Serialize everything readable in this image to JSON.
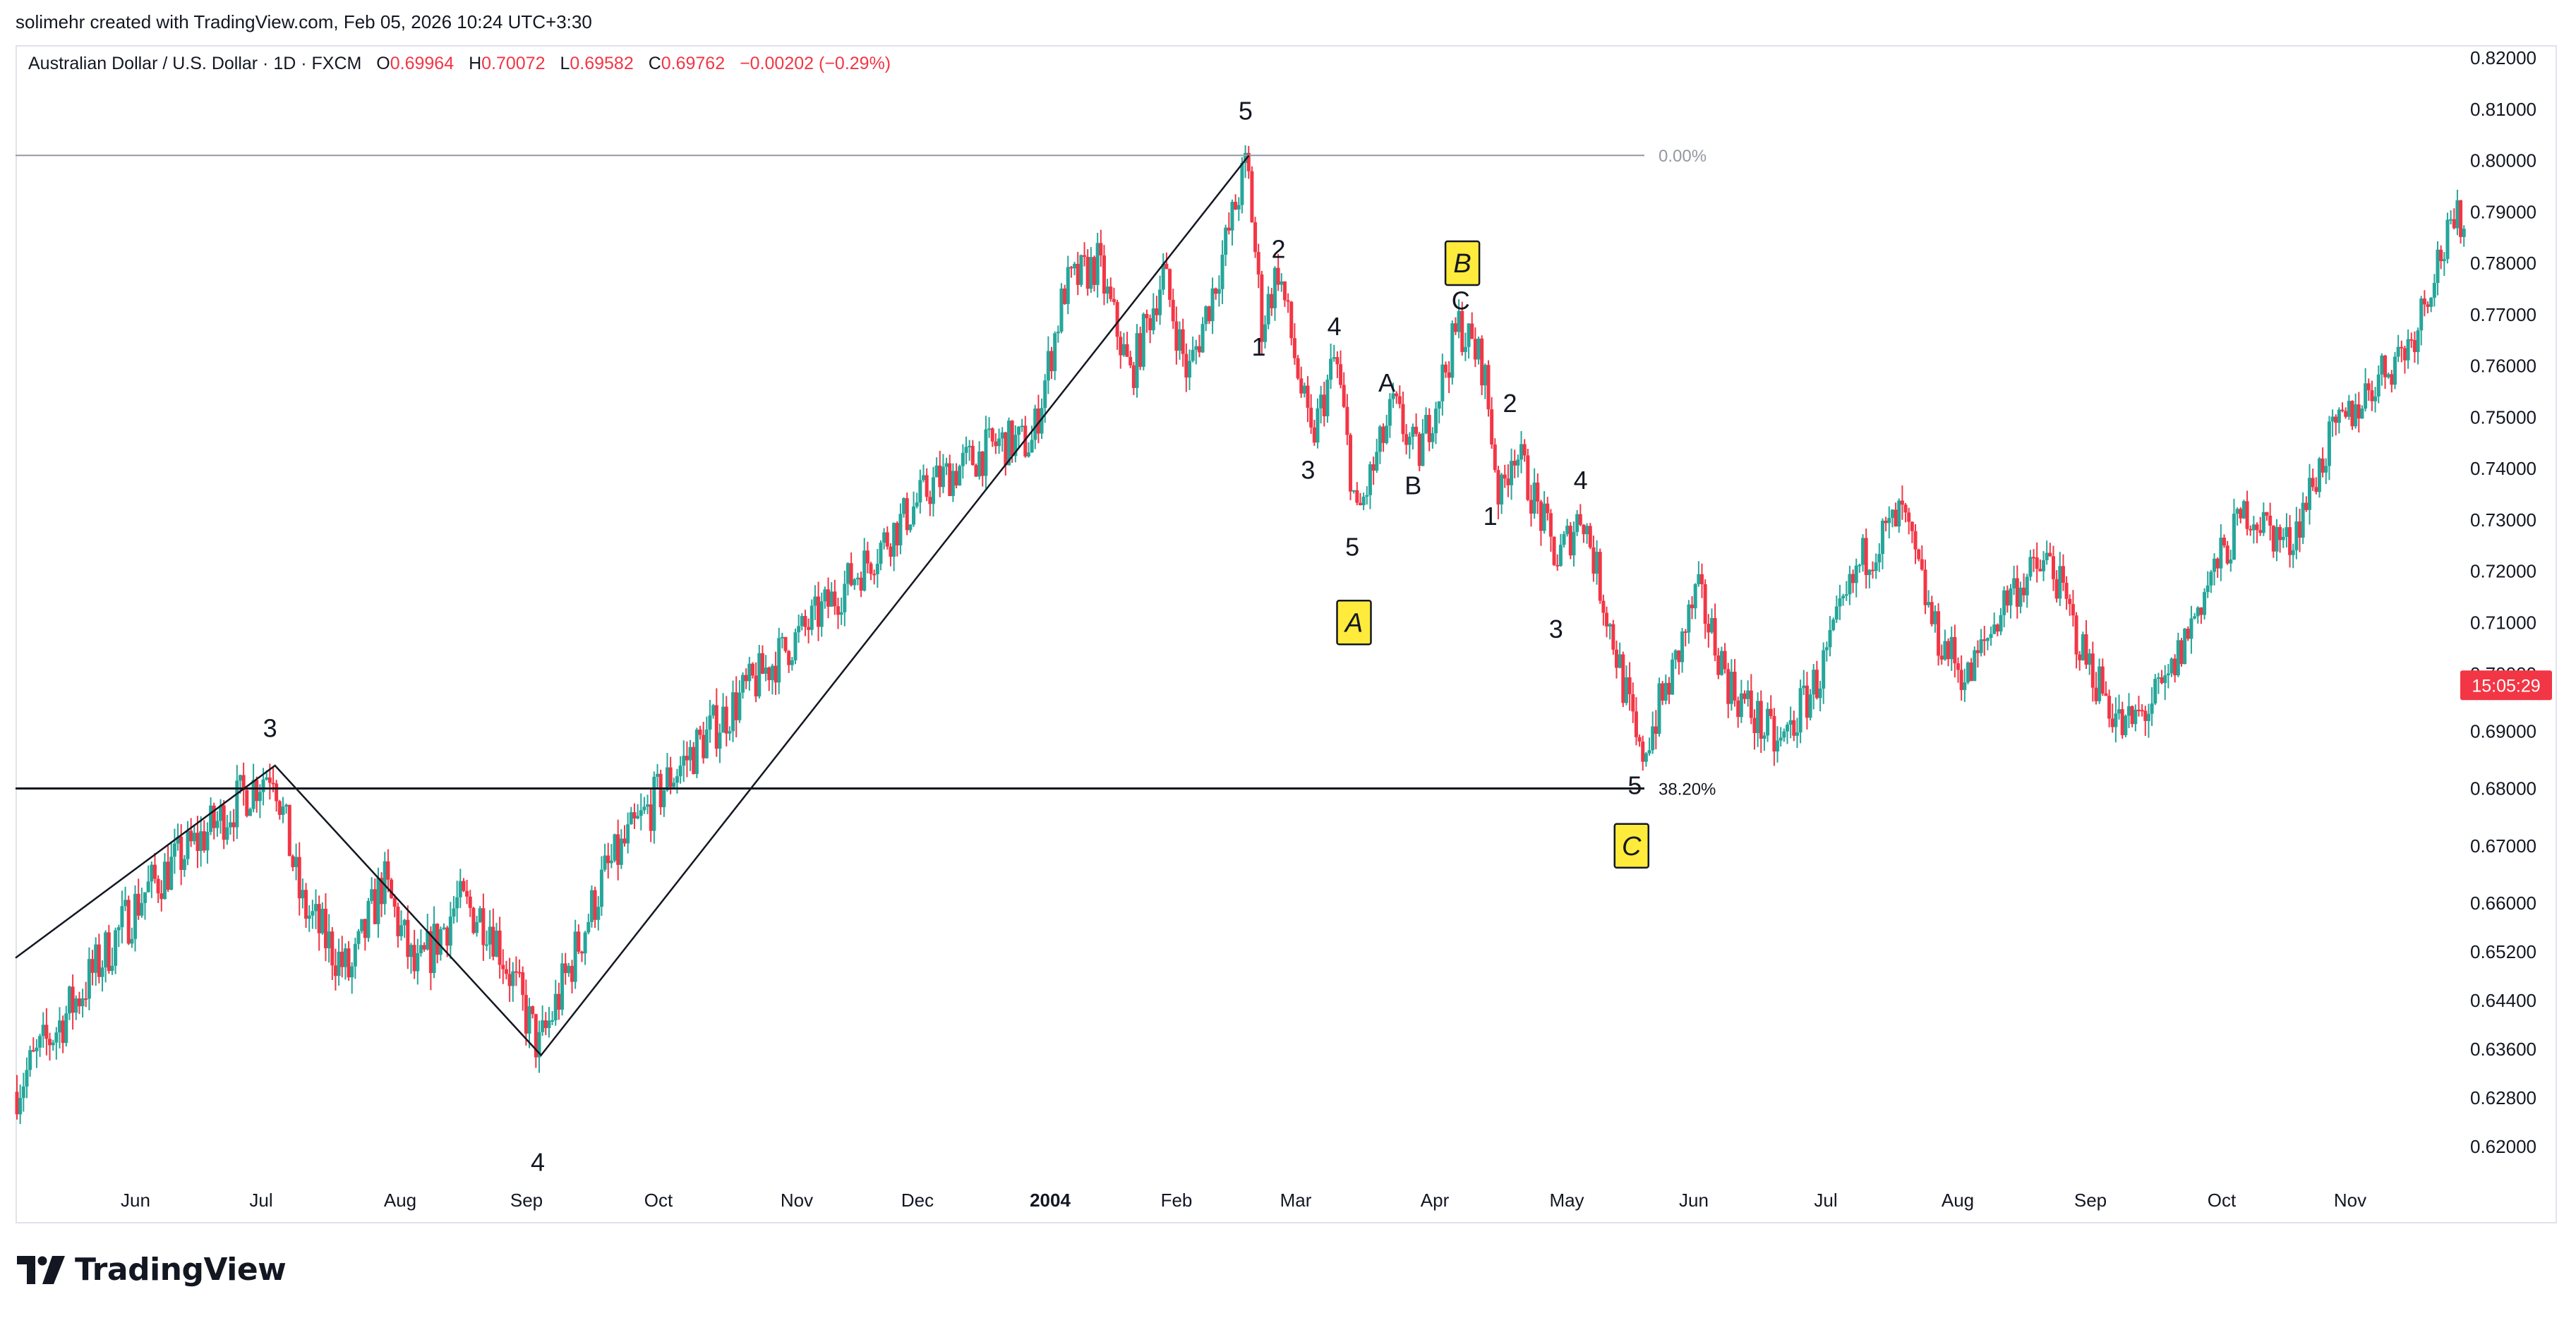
{
  "attribution": "solimehr created with TradingView.com, Feb 05, 2026 10:24 UTC+3:30",
  "symbol": {
    "name": "Australian Dollar / U.S. Dollar · 1D · FXCM",
    "open_label": "O",
    "open": "0.69964",
    "high_label": "H",
    "high": "0.70072",
    "low_label": "L",
    "low": "0.69582",
    "close_label": "C",
    "close": "0.69762",
    "change": "−0.00202 (−0.29%)"
  },
  "countdown": "15:05:29",
  "logo_text": "TradingView",
  "colors": {
    "up": "#26a69a",
    "down": "#f23645",
    "badge": "#ffeb3b",
    "text": "#131722",
    "axis_text": "#131722",
    "fib_line": "#9598a1"
  },
  "chart_data": {
    "type": "candlestick",
    "y_axis_ticks": [
      "0.82000",
      "0.81000",
      "0.80000",
      "0.79000",
      "0.78000",
      "0.77000",
      "0.76000",
      "0.75000",
      "0.74000",
      "0.73000",
      "0.72000",
      "0.71000",
      "0.70000",
      "0.69000",
      "0.68000",
      "0.67000",
      "0.66000",
      "0.65200",
      "0.64400",
      "0.63600",
      "0.62800",
      "0.62000"
    ],
    "x_axis_labels": [
      "Jun",
      "Jul",
      "Aug",
      "Sep",
      "Oct",
      "Nov",
      "Dec",
      "2004",
      "Feb",
      "Mar",
      "Apr",
      "May",
      "Jun",
      "Jul",
      "Aug",
      "Sep",
      "Oct",
      "Nov"
    ],
    "bold_x_label": "2004",
    "fib_levels": [
      {
        "label": "0.00%",
        "price": 0.801
      },
      {
        "label": "38.20%",
        "price": 0.68
      }
    ],
    "wave_labels": [
      {
        "text": "3",
        "date_index": 155,
        "price": 0.689
      },
      {
        "text": "4",
        "date_index": 318,
        "price": 0.616
      },
      {
        "text": "5",
        "date_index": 749,
        "price": 0.808
      },
      {
        "text": "1",
        "date_index": 757,
        "price": 0.762
      },
      {
        "text": "2",
        "date_index": 769,
        "price": 0.781
      },
      {
        "text": "3",
        "date_index": 787,
        "price": 0.738
      },
      {
        "text": "4",
        "date_index": 803,
        "price": 0.766
      },
      {
        "text": "5",
        "date_index": 814,
        "price": 0.723
      },
      {
        "text": "A",
        "date_index": 835,
        "price": 0.755
      },
      {
        "text": "B",
        "date_index": 851,
        "price": 0.735
      },
      {
        "text": "C",
        "date_index": 880,
        "price": 0.771
      },
      {
        "text": "2",
        "date_index": 910,
        "price": 0.751
      },
      {
        "text": "1",
        "date_index": 898,
        "price": 0.729
      },
      {
        "text": "4",
        "date_index": 953,
        "price": 0.736
      },
      {
        "text": "3",
        "date_index": 938,
        "price": 0.707
      },
      {
        "text": "5",
        "date_index": 986,
        "price": 0.679
      }
    ],
    "wave_badges": [
      {
        "text": "A",
        "date_index": 815,
        "price": 0.71
      },
      {
        "text": "B",
        "date_index": 881,
        "price": 0.78
      },
      {
        "text": "C",
        "date_index": 984,
        "price": 0.67
      }
    ],
    "trend_path": [
      {
        "date_index": 0,
        "price": 0.651
      },
      {
        "date_index": 158,
        "price": 0.684
      },
      {
        "date_index": 320,
        "price": 0.635
      },
      {
        "date_index": 751,
        "price": 0.801
      }
    ],
    "price_path": [
      {
        "date_index": 0,
        "price": 0.629
      },
      {
        "date_index": 40,
        "price": 0.645
      },
      {
        "date_index": 80,
        "price": 0.662
      },
      {
        "date_index": 120,
        "price": 0.673
      },
      {
        "date_index": 158,
        "price": 0.684
      },
      {
        "date_index": 175,
        "price": 0.66
      },
      {
        "date_index": 205,
        "price": 0.648
      },
      {
        "date_index": 225,
        "price": 0.664
      },
      {
        "date_index": 245,
        "price": 0.648
      },
      {
        "date_index": 270,
        "price": 0.66
      },
      {
        "date_index": 290,
        "price": 0.657
      },
      {
        "date_index": 320,
        "price": 0.636
      },
      {
        "date_index": 360,
        "price": 0.665
      },
      {
        "date_index": 400,
        "price": 0.682
      },
      {
        "date_index": 440,
        "price": 0.695
      },
      {
        "date_index": 480,
        "price": 0.708
      },
      {
        "date_index": 520,
        "price": 0.722
      },
      {
        "date_index": 560,
        "price": 0.737
      },
      {
        "date_index": 600,
        "price": 0.745
      },
      {
        "date_index": 620,
        "price": 0.745
      },
      {
        "date_index": 640,
        "price": 0.775
      },
      {
        "date_index": 660,
        "price": 0.78
      },
      {
        "date_index": 680,
        "price": 0.758
      },
      {
        "date_index": 700,
        "price": 0.778
      },
      {
        "date_index": 715,
        "price": 0.758
      },
      {
        "date_index": 735,
        "price": 0.78
      },
      {
        "date_index": 751,
        "price": 0.8
      },
      {
        "date_index": 760,
        "price": 0.768
      },
      {
        "date_index": 770,
        "price": 0.779
      },
      {
        "date_index": 790,
        "price": 0.745
      },
      {
        "date_index": 805,
        "price": 0.762
      },
      {
        "date_index": 818,
        "price": 0.73
      },
      {
        "date_index": 840,
        "price": 0.752
      },
      {
        "date_index": 855,
        "price": 0.742
      },
      {
        "date_index": 880,
        "price": 0.768
      },
      {
        "date_index": 895,
        "price": 0.76
      },
      {
        "date_index": 905,
        "price": 0.733
      },
      {
        "date_index": 913,
        "price": 0.745
      },
      {
        "date_index": 940,
        "price": 0.722
      },
      {
        "date_index": 955,
        "price": 0.732
      },
      {
        "date_index": 990,
        "price": 0.685
      },
      {
        "date_index": 1010,
        "price": 0.7
      },
      {
        "date_index": 1025,
        "price": 0.716
      },
      {
        "date_index": 1045,
        "price": 0.698
      },
      {
        "date_index": 1075,
        "price": 0.687
      },
      {
        "date_index": 1100,
        "price": 0.7
      },
      {
        "date_index": 1125,
        "price": 0.722
      },
      {
        "date_index": 1150,
        "price": 0.731
      },
      {
        "date_index": 1170,
        "price": 0.708
      },
      {
        "date_index": 1190,
        "price": 0.699
      },
      {
        "date_index": 1215,
        "price": 0.716
      },
      {
        "date_index": 1240,
        "price": 0.722
      },
      {
        "date_index": 1260,
        "price": 0.704
      },
      {
        "date_index": 1285,
        "price": 0.69
      },
      {
        "date_index": 1310,
        "price": 0.697
      },
      {
        "date_index": 1335,
        "price": 0.717
      },
      {
        "date_index": 1360,
        "price": 0.732
      },
      {
        "date_index": 1385,
        "price": 0.725
      },
      {
        "date_index": 1410,
        "price": 0.745
      },
      {
        "date_index": 1440,
        "price": 0.758
      },
      {
        "date_index": 1460,
        "price": 0.765
      },
      {
        "date_index": 1475,
        "price": 0.78
      },
      {
        "date_index": 1490,
        "price": 0.789
      }
    ],
    "last_price": 0.698
  }
}
